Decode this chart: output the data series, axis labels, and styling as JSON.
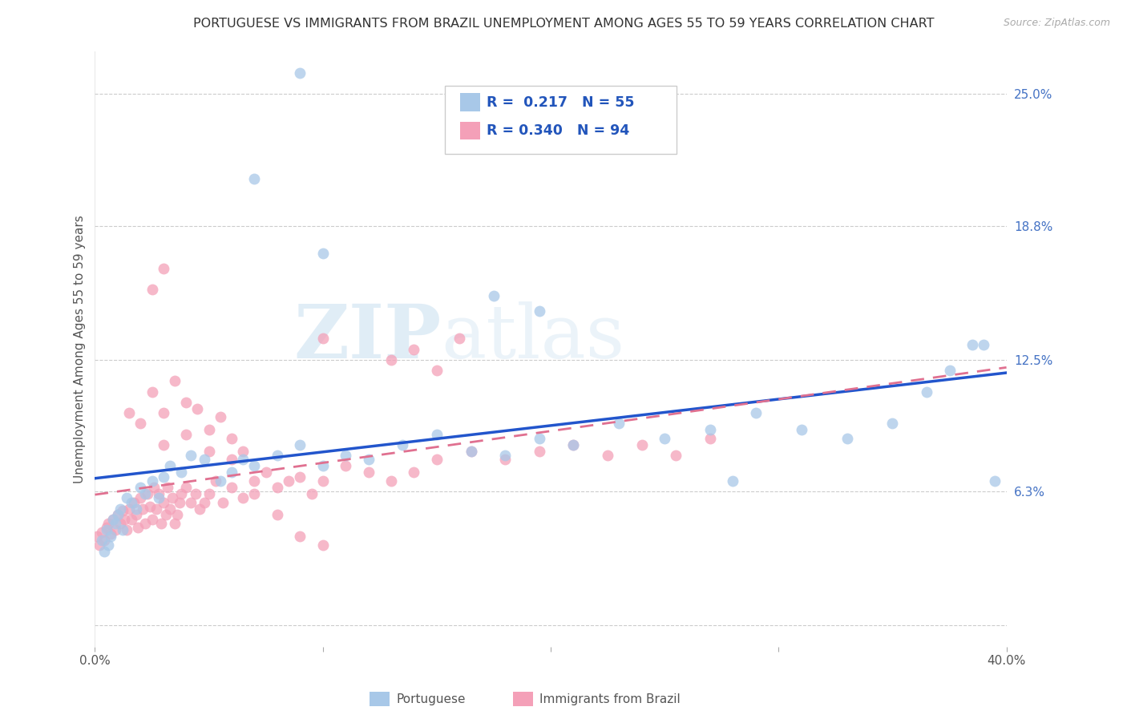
{
  "title": "PORTUGUESE VS IMMIGRANTS FROM BRAZIL UNEMPLOYMENT AMONG AGES 55 TO 59 YEARS CORRELATION CHART",
  "source": "Source: ZipAtlas.com",
  "ylabel": "Unemployment Among Ages 55 to 59 years",
  "xlim": [
    0.0,
    0.4
  ],
  "ylim": [
    -0.01,
    0.27
  ],
  "ytick_positions": [
    0.0,
    0.063,
    0.125,
    0.188,
    0.25
  ],
  "ytick_labels": [
    "",
    "6.3%",
    "12.5%",
    "18.8%",
    "25.0%"
  ],
  "legend_R1": "0.217",
  "legend_N1": "55",
  "legend_R2": "0.340",
  "legend_N2": "94",
  "color_portuguese": "#a8c8e8",
  "color_brazil": "#f4a0b8",
  "color_line_portuguese": "#2255cc",
  "color_line_brazil": "#e07090",
  "watermark_zip": "ZIP",
  "watermark_atlas": "atlas",
  "portuguese_x": [
    0.003,
    0.004,
    0.005,
    0.006,
    0.007,
    0.008,
    0.009,
    0.01,
    0.011,
    0.012,
    0.014,
    0.016,
    0.018,
    0.02,
    0.022,
    0.025,
    0.028,
    0.03,
    0.033,
    0.038,
    0.042,
    0.048,
    0.055,
    0.06,
    0.065,
    0.07,
    0.08,
    0.09,
    0.1,
    0.11,
    0.12,
    0.135,
    0.15,
    0.165,
    0.18,
    0.195,
    0.21,
    0.23,
    0.25,
    0.27,
    0.29,
    0.31,
    0.33,
    0.35,
    0.365,
    0.375,
    0.385,
    0.39,
    0.395,
    0.28,
    0.175,
    0.195,
    0.1,
    0.09,
    0.07
  ],
  "portuguese_y": [
    0.04,
    0.035,
    0.045,
    0.038,
    0.042,
    0.05,
    0.048,
    0.052,
    0.055,
    0.045,
    0.06,
    0.058,
    0.055,
    0.065,
    0.062,
    0.068,
    0.06,
    0.07,
    0.075,
    0.072,
    0.08,
    0.078,
    0.068,
    0.072,
    0.078,
    0.075,
    0.08,
    0.085,
    0.075,
    0.08,
    0.078,
    0.085,
    0.09,
    0.082,
    0.08,
    0.088,
    0.085,
    0.095,
    0.088,
    0.092,
    0.1,
    0.092,
    0.088,
    0.095,
    0.11,
    0.12,
    0.132,
    0.132,
    0.068,
    0.068,
    0.155,
    0.148,
    0.175,
    0.26,
    0.21
  ],
  "brazil_x": [
    0.001,
    0.002,
    0.003,
    0.004,
    0.005,
    0.006,
    0.007,
    0.008,
    0.009,
    0.01,
    0.011,
    0.012,
    0.013,
    0.014,
    0.015,
    0.016,
    0.017,
    0.018,
    0.019,
    0.02,
    0.021,
    0.022,
    0.023,
    0.024,
    0.025,
    0.026,
    0.027,
    0.028,
    0.029,
    0.03,
    0.031,
    0.032,
    0.033,
    0.034,
    0.035,
    0.036,
    0.037,
    0.038,
    0.04,
    0.042,
    0.044,
    0.046,
    0.048,
    0.05,
    0.053,
    0.056,
    0.06,
    0.065,
    0.07,
    0.075,
    0.08,
    0.085,
    0.09,
    0.095,
    0.1,
    0.11,
    0.12,
    0.13,
    0.14,
    0.15,
    0.165,
    0.18,
    0.195,
    0.21,
    0.225,
    0.24,
    0.255,
    0.27,
    0.03,
    0.04,
    0.05,
    0.06,
    0.07,
    0.08,
    0.09,
    0.1,
    0.015,
    0.02,
    0.025,
    0.03,
    0.035,
    0.04,
    0.045,
    0.05,
    0.055,
    0.06,
    0.065,
    0.13,
    0.14,
    0.15,
    0.025,
    0.03,
    0.1,
    0.16
  ],
  "brazil_y": [
    0.042,
    0.038,
    0.044,
    0.04,
    0.046,
    0.048,
    0.043,
    0.05,
    0.045,
    0.052,
    0.048,
    0.054,
    0.05,
    0.045,
    0.055,
    0.05,
    0.058,
    0.052,
    0.046,
    0.06,
    0.055,
    0.048,
    0.062,
    0.056,
    0.05,
    0.065,
    0.055,
    0.062,
    0.048,
    0.058,
    0.052,
    0.065,
    0.055,
    0.06,
    0.048,
    0.052,
    0.058,
    0.062,
    0.065,
    0.058,
    0.062,
    0.055,
    0.058,
    0.062,
    0.068,
    0.058,
    0.065,
    0.06,
    0.068,
    0.072,
    0.065,
    0.068,
    0.07,
    0.062,
    0.068,
    0.075,
    0.072,
    0.068,
    0.072,
    0.078,
    0.082,
    0.078,
    0.082,
    0.085,
    0.08,
    0.085,
    0.08,
    0.088,
    0.085,
    0.09,
    0.082,
    0.078,
    0.062,
    0.052,
    0.042,
    0.038,
    0.1,
    0.095,
    0.11,
    0.1,
    0.115,
    0.105,
    0.102,
    0.092,
    0.098,
    0.088,
    0.082,
    0.125,
    0.13,
    0.12,
    0.158,
    0.168,
    0.135,
    0.135
  ]
}
